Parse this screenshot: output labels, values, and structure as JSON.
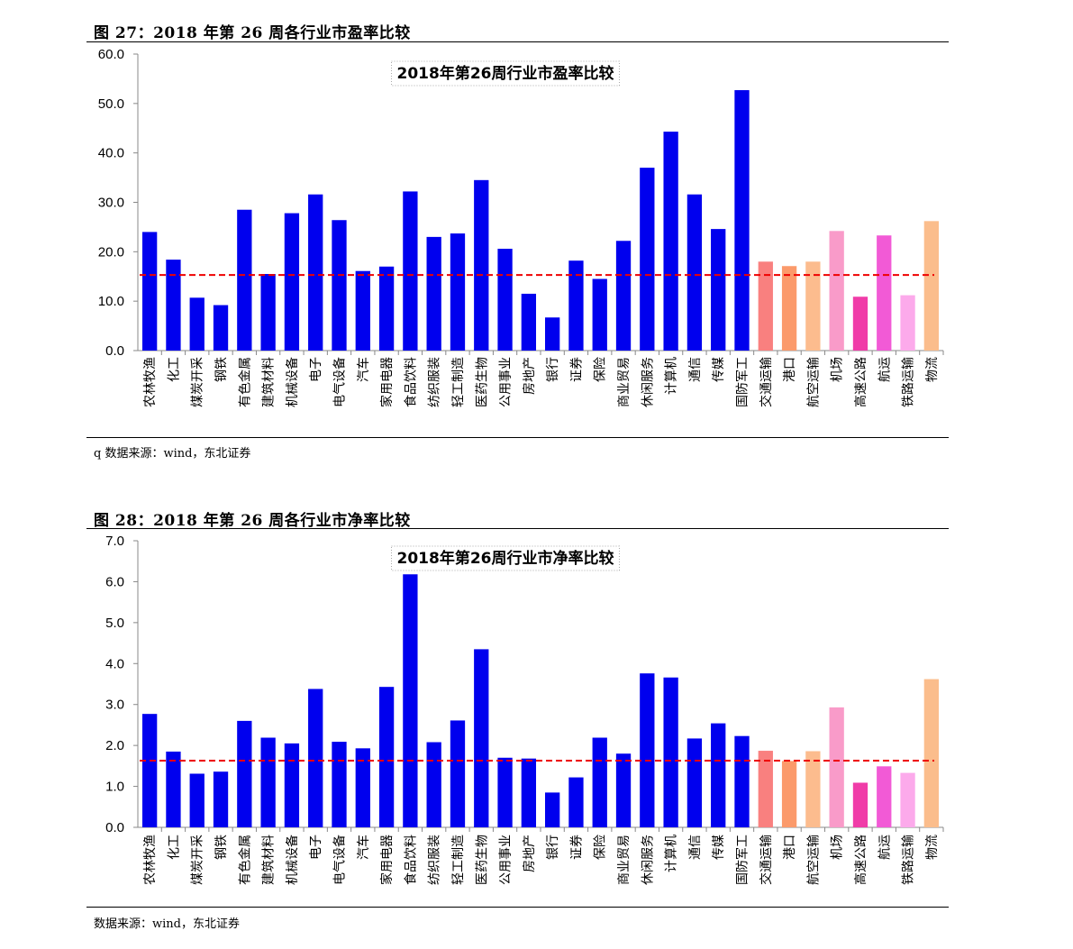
{
  "figures": [
    {
      "heading": "图 27：2018 年第 26 周各行业市盈率比较",
      "source": "q 数据来源：wind，东北证券"
    },
    {
      "heading": "图 28：2018 年第 26 周各行业市净率比较",
      "source": "数据来源：wind，东北证券"
    }
  ],
  "chart_data": [
    {
      "type": "bar",
      "title": "2018年第26周行业市盈率比较",
      "xlabel": "",
      "ylabel": "",
      "ylim": [
        0,
        60
      ],
      "yticks": [
        "0.0",
        "10.0",
        "20.0",
        "30.0",
        "40.0",
        "50.0",
        "60.0"
      ],
      "grid": false,
      "categories": [
        "农林牧渔",
        "化工",
        "煤炭开采",
        "钢铁",
        "有色金属",
        "建筑材料",
        "机械设备",
        "电子",
        "电气设备",
        "汽车",
        "家用电器",
        "食品饮料",
        "纺织服装",
        "轻工制造",
        "医药生物",
        "公用事业",
        "房地产",
        "银行",
        "证券",
        "保险",
        "商业贸易",
        "休闲服务",
        "计算机",
        "通信",
        "传媒",
        "国防军工",
        "交通运输",
        "港口",
        "航空运输",
        "机场",
        "高速公路",
        "航运",
        "铁路运输",
        "物流"
      ],
      "values": [
        24.0,
        18.4,
        10.7,
        9.2,
        28.5,
        15.5,
        27.8,
        31.6,
        26.4,
        16.1,
        17.0,
        32.2,
        23.0,
        23.7,
        34.5,
        20.6,
        11.5,
        6.7,
        18.2,
        14.5,
        22.2,
        37.0,
        44.3,
        31.6,
        24.6,
        52.7,
        18.0,
        17.1,
        18.0,
        24.2,
        10.9,
        23.3,
        11.2,
        26.2
      ],
      "colors": [
        "#0000ee",
        "#0000ee",
        "#0000ee",
        "#0000ee",
        "#0000ee",
        "#0000ee",
        "#0000ee",
        "#0000ee",
        "#0000ee",
        "#0000ee",
        "#0000ee",
        "#0000ee",
        "#0000ee",
        "#0000ee",
        "#0000ee",
        "#0000ee",
        "#0000ee",
        "#0000ee",
        "#0000ee",
        "#0000ee",
        "#0000ee",
        "#0000ee",
        "#0000ee",
        "#0000ee",
        "#0000ee",
        "#0000ee",
        "#f9807f",
        "#fb9a6b",
        "#fcbc8e",
        "#f99bc9",
        "#f03ca8",
        "#f25ad6",
        "#fcaaeb",
        "#fbbd8c"
      ],
      "reference_line": {
        "value": 15.3,
        "color": "#ee0000",
        "style": "dashed"
      }
    },
    {
      "type": "bar",
      "title": "2018年第26周行业市净率比较",
      "xlabel": "",
      "ylabel": "",
      "ylim": [
        0,
        7
      ],
      "yticks": [
        "0.0",
        "1.0",
        "2.0",
        "3.0",
        "4.0",
        "5.0",
        "6.0",
        "7.0"
      ],
      "grid": false,
      "categories": [
        "农林牧渔",
        "化工",
        "煤炭开采",
        "钢铁",
        "有色金属",
        "建筑材料",
        "机械设备",
        "电子",
        "电气设备",
        "汽车",
        "家用电器",
        "食品饮料",
        "纺织服装",
        "轻工制造",
        "医药生物",
        "公用事业",
        "房地产",
        "银行",
        "证券",
        "保险",
        "商业贸易",
        "休闲服务",
        "计算机",
        "通信",
        "传媒",
        "国防军工",
        "交通运输",
        "港口",
        "航空运输",
        "机场",
        "高速公路",
        "航运",
        "铁路运输",
        "物流"
      ],
      "values": [
        2.77,
        1.85,
        1.31,
        1.36,
        2.6,
        2.19,
        2.05,
        3.38,
        2.09,
        1.93,
        3.43,
        6.18,
        2.08,
        2.61,
        4.35,
        1.7,
        1.68,
        0.85,
        1.22,
        2.19,
        1.8,
        3.76,
        3.66,
        2.17,
        2.54,
        2.23,
        1.87,
        1.62,
        1.86,
        2.93,
        1.09,
        1.49,
        1.33,
        3.62
      ],
      "colors": [
        "#0000ee",
        "#0000ee",
        "#0000ee",
        "#0000ee",
        "#0000ee",
        "#0000ee",
        "#0000ee",
        "#0000ee",
        "#0000ee",
        "#0000ee",
        "#0000ee",
        "#0000ee",
        "#0000ee",
        "#0000ee",
        "#0000ee",
        "#0000ee",
        "#0000ee",
        "#0000ee",
        "#0000ee",
        "#0000ee",
        "#0000ee",
        "#0000ee",
        "#0000ee",
        "#0000ee",
        "#0000ee",
        "#0000ee",
        "#f9807f",
        "#fb9a6b",
        "#fcbc8e",
        "#f99bc9",
        "#f03ca8",
        "#f25ad6",
        "#fcaaeb",
        "#fbbd8c"
      ],
      "reference_line": {
        "value": 1.63,
        "color": "#ee0000",
        "style": "dashed"
      }
    }
  ]
}
